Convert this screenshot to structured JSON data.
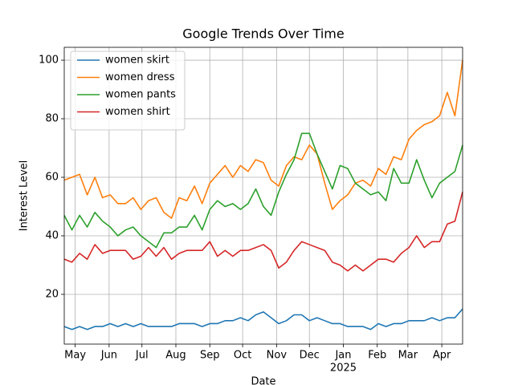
{
  "chart_data": {
    "type": "line",
    "title": "Google Trends Over Time",
    "x_label": "Date",
    "y_label": "Interest Level",
    "x": [
      "2024-04-21",
      "2024-04-28",
      "2024-05-05",
      "2024-05-12",
      "2024-05-19",
      "2024-05-26",
      "2024-06-02",
      "2024-06-09",
      "2024-06-16",
      "2024-06-23",
      "2024-06-30",
      "2024-07-07",
      "2024-07-14",
      "2024-07-21",
      "2024-07-28",
      "2024-08-04",
      "2024-08-11",
      "2024-08-18",
      "2024-08-25",
      "2024-09-01",
      "2024-09-08",
      "2024-09-15",
      "2024-09-22",
      "2024-09-29",
      "2024-10-06",
      "2024-10-13",
      "2024-10-20",
      "2024-10-27",
      "2024-11-03",
      "2024-11-10",
      "2024-11-17",
      "2024-11-24",
      "2024-12-01",
      "2024-12-08",
      "2024-12-15",
      "2024-12-22",
      "2024-12-29",
      "2025-01-05",
      "2025-01-12",
      "2025-01-19",
      "2025-01-26",
      "2025-02-02",
      "2025-02-09",
      "2025-02-16",
      "2025-02-23",
      "2025-03-02",
      "2025-03-09",
      "2025-03-16",
      "2025-03-23",
      "2025-03-30",
      "2025-04-06",
      "2025-04-13",
      "2025-04-20"
    ],
    "series": [
      {
        "name": "women skirt",
        "color": "#1f77b4",
        "values": [
          9,
          8,
          9,
          8,
          9,
          9,
          10,
          9,
          10,
          9,
          10,
          9,
          9,
          9,
          9,
          10,
          10,
          10,
          9,
          10,
          10,
          11,
          11,
          12,
          11,
          13,
          14,
          12,
          10,
          11,
          13,
          13,
          11,
          12,
          11,
          10,
          10,
          9,
          9,
          9,
          8,
          10,
          9,
          10,
          10,
          11,
          11,
          11,
          12,
          11,
          12,
          12,
          15
        ]
      },
      {
        "name": "women dress",
        "color": "#ff7f0e",
        "values": [
          59,
          60,
          61,
          54,
          60,
          53,
          54,
          51,
          51,
          53,
          49,
          52,
          53,
          48,
          46,
          53,
          52,
          57,
          51,
          58,
          61,
          64,
          60,
          64,
          62,
          66,
          65,
          59,
          57,
          64,
          67,
          66,
          71,
          68,
          58,
          49,
          52,
          54,
          58,
          59,
          57,
          63,
          61,
          67,
          66,
          73,
          76,
          78,
          79,
          81,
          89,
          81,
          100
        ]
      },
      {
        "name": "women pants",
        "color": "#2ca02c",
        "values": [
          47,
          42,
          47,
          43,
          48,
          45,
          43,
          40,
          42,
          43,
          40,
          38,
          36,
          41,
          41,
          43,
          43,
          47,
          42,
          49,
          52,
          50,
          51,
          49,
          51,
          56,
          50,
          47,
          55,
          61,
          66,
          75,
          75,
          68,
          62,
          56,
          64,
          63,
          58,
          56,
          54,
          55,
          52,
          63,
          58,
          58,
          66,
          59,
          53,
          58,
          60,
          62,
          71
        ]
      },
      {
        "name": "women shirt",
        "color": "#d62728",
        "values": [
          32,
          31,
          34,
          32,
          37,
          34,
          35,
          35,
          35,
          32,
          33,
          36,
          33,
          36,
          32,
          34,
          35,
          35,
          35,
          38,
          33,
          35,
          33,
          35,
          35,
          36,
          37,
          35,
          29,
          31,
          35,
          38,
          37,
          36,
          35,
          31,
          30,
          28,
          30,
          28,
          30,
          32,
          32,
          31,
          34,
          36,
          40,
          36,
          38,
          38,
          44,
          45,
          55
        ]
      }
    ],
    "xlim": [
      "2024-04-21",
      "2025-04-20"
    ],
    "xticks": [
      {
        "value": "2024-05-01",
        "label": "May"
      },
      {
        "value": "2024-06-01",
        "label": "Jun"
      },
      {
        "value": "2024-07-01",
        "label": "Jul"
      },
      {
        "value": "2024-08-01",
        "label": "Aug"
      },
      {
        "value": "2024-09-01",
        "label": "Sep"
      },
      {
        "value": "2024-10-01",
        "label": "Oct"
      },
      {
        "value": "2024-11-01",
        "label": "Nov"
      },
      {
        "value": "2024-12-01",
        "label": "Dec"
      },
      {
        "value": "2025-01-01",
        "label": "Jan",
        "year_label": "2025"
      },
      {
        "value": "2025-02-01",
        "label": "Feb"
      },
      {
        "value": "2025-03-01",
        "label": "Mar"
      },
      {
        "value": "2025-04-01",
        "label": "Apr"
      }
    ],
    "ylim": [
      3,
      104.4
    ],
    "yticks": [
      20,
      40,
      60,
      80,
      100
    ],
    "grid": true,
    "legend": "upper left"
  }
}
